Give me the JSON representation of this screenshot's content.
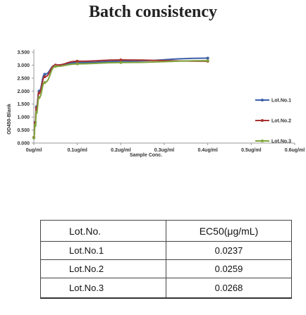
{
  "chart_data": {
    "type": "line",
    "title": "Batch consistency",
    "xlabel": "Sample Conc.",
    "ylabel": "OD450-Blank",
    "ylim": [
      0,
      3.5
    ],
    "yticks": [
      "0.000",
      "0.500",
      "1.000",
      "1.500",
      "2.000",
      "2.500",
      "3.000",
      "3.500"
    ],
    "xticks": [
      {
        "value": 0,
        "label": "0ug/ml"
      },
      {
        "value": 0.1,
        "label": "0.1ug/ml"
      },
      {
        "value": 0.2,
        "label": "0.2ug/ml"
      },
      {
        "value": 0.3,
        "label": "0.3ug/ml"
      },
      {
        "value": 0.4,
        "label": "0.4ug/ml"
      },
      {
        "value": 0.5,
        "label": "0.5ug/ml"
      },
      {
        "value": 0.6,
        "label": "0.6ug/ml"
      }
    ],
    "xlim": [
      0,
      0.6
    ],
    "grid": false,
    "legend_position": "right",
    "series": [
      {
        "name": "Lot.No.1",
        "color": "#3a5fa8",
        "x": [
          0,
          0.003,
          0.006,
          0.012,
          0.025,
          0.05,
          0.1,
          0.2,
          0.4
        ],
        "y": [
          0.2,
          0.8,
          1.4,
          2.0,
          2.65,
          3.0,
          3.1,
          3.15,
          3.27
        ]
      },
      {
        "name": "Lot.No.2",
        "color": "#a83232",
        "x": [
          0,
          0.003,
          0.006,
          0.012,
          0.025,
          0.05,
          0.1,
          0.2,
          0.4
        ],
        "y": [
          0.22,
          0.78,
          1.35,
          1.93,
          2.55,
          3.0,
          3.15,
          3.2,
          3.15
        ]
      },
      {
        "name": "Lot.No.3",
        "color": "#7fa33a",
        "x": [
          0,
          0.003,
          0.006,
          0.012,
          0.025,
          0.05,
          0.1,
          0.2,
          0.4
        ],
        "y": [
          0.2,
          0.68,
          1.18,
          1.75,
          2.33,
          2.95,
          3.05,
          3.1,
          3.17
        ]
      }
    ]
  },
  "table": {
    "headers": [
      "Lot.No.",
      "EC50(μg/mL)"
    ],
    "rows": [
      [
        "Lot.No.1",
        "0.0237"
      ],
      [
        "Lot.No.2",
        "0.0259"
      ],
      [
        "Lot.No.3",
        "0.0268"
      ]
    ]
  }
}
